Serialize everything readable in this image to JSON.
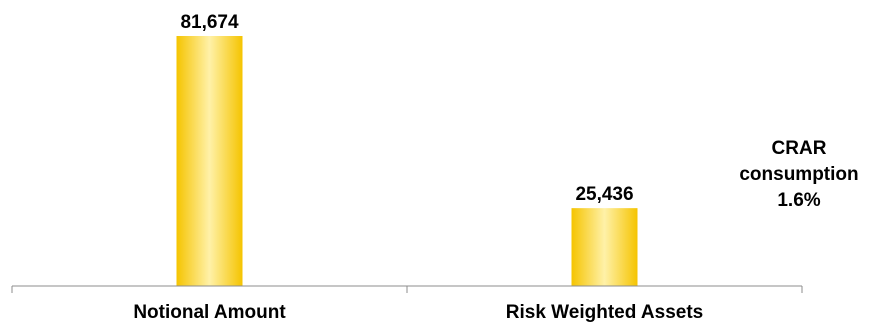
{
  "chart_data": {
    "type": "bar",
    "categories": [
      "Notional Amount",
      "Risk Weighted Assets"
    ],
    "values": [
      81674,
      25436
    ],
    "value_labels": [
      "81,674",
      "25,436"
    ],
    "ylim": [
      0,
      81674
    ],
    "grid": false,
    "legend": "none",
    "bar_color": "#F5C400",
    "bar_highlight": "#FFF1A8",
    "annotation": [
      "CRAR",
      "consumption",
      "1.6%"
    ]
  }
}
